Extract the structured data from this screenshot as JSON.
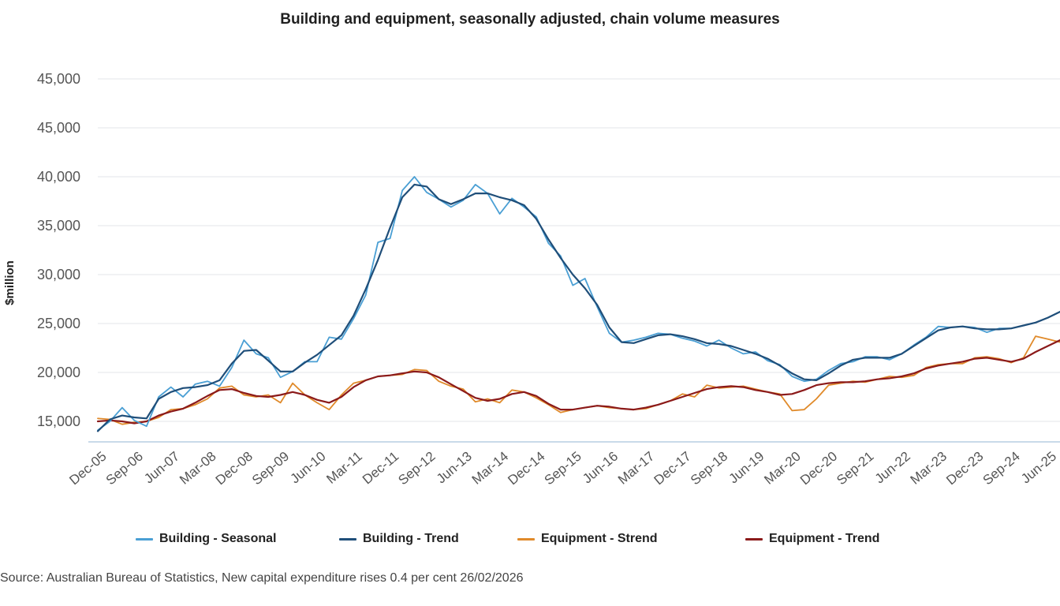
{
  "chart_data": {
    "type": "line",
    "title": "Building and equipment, seasonally adjusted, chain volume measures",
    "xlabel": "",
    "ylabel": "$million",
    "y_tick_labels": [
      "45,000",
      "45,000",
      "40,000",
      "35,000",
      "30,000",
      "25,000",
      "20,000",
      "15,000"
    ],
    "ylim": [
      12500,
      46500
    ],
    "x_tick_labels": [
      "Dec-05",
      "Sep-06",
      "Jun-07",
      "Mar-08",
      "Dec-08",
      "Sep-09",
      "Jun-10",
      "Mar-11",
      "Dec-11",
      "Sep-12",
      "Jun-13",
      "Mar-14",
      "Dec-14",
      "Sep-15",
      "Jun-16",
      "Mar-17",
      "Dec-17",
      "Sep-18",
      "Jun-19",
      "Mar-20",
      "Dec-20",
      "Sep-21",
      "Jun-22",
      "Mar-23",
      "Dec-23",
      "Sep-24",
      "Jun-25"
    ],
    "x_tick_step_quarters": 3,
    "grid": true,
    "legend_position": "bottom",
    "series": [
      {
        "name": "Building - Seasonal",
        "color": "#4a9fd4",
        "values": [
          14100,
          15000,
          16400,
          15100,
          14500,
          17500,
          18500,
          17500,
          18800,
          19100,
          18600,
          20500,
          23300,
          21900,
          21500,
          19500,
          20100,
          21100,
          21100,
          23600,
          23400,
          25500,
          27900,
          33300,
          33700,
          38600,
          40000,
          38400,
          37700,
          36900,
          37600,
          39200,
          38300,
          36200,
          37800,
          36900,
          35900,
          33200,
          31900,
          28900,
          29600,
          26700,
          24000,
          23100,
          23300,
          23600,
          24000,
          23900,
          23500,
          23200,
          22700,
          23300,
          22500,
          21900,
          22100,
          21200,
          20800,
          19600,
          19100,
          19300,
          20200,
          20900,
          21100,
          21600,
          21600,
          21300,
          21900,
          22800,
          23600,
          24700,
          24600,
          24700,
          24600,
          24100,
          24500,
          24500,
          24800,
          25100,
          25600,
          26200
        ]
      },
      {
        "name": "Building - Trend",
        "color": "#1f4e79",
        "values": [
          14000,
          15200,
          15600,
          15400,
          15300,
          17300,
          18000,
          18400,
          18500,
          18700,
          19200,
          20900,
          22200,
          22300,
          21200,
          20100,
          20100,
          21000,
          21800,
          22800,
          23800,
          25800,
          28500,
          31500,
          34800,
          37900,
          39200,
          39000,
          37700,
          37200,
          37700,
          38300,
          38300,
          37900,
          37600,
          37100,
          35700,
          33600,
          31700,
          30000,
          28600,
          26900,
          24600,
          23100,
          23000,
          23400,
          23800,
          23900,
          23700,
          23400,
          23000,
          22900,
          22700,
          22300,
          21900,
          21400,
          20700,
          19900,
          19300,
          19200,
          19900,
          20700,
          21300,
          21500,
          21500,
          21500,
          21900,
          22700,
          23500,
          24300,
          24600,
          24700,
          24500,
          24400,
          24400,
          24500,
          24800,
          25100,
          25600,
          26200
        ]
      },
      {
        "name": "Equipment - Strend",
        "color": "#e08a2a",
        "values": [
          15300,
          15200,
          14700,
          14900,
          15000,
          15400,
          16200,
          16300,
          16700,
          17300,
          18400,
          18600,
          17700,
          17500,
          17700,
          16900,
          18900,
          17700,
          16900,
          16200,
          17700,
          18900,
          19200,
          19600,
          19700,
          19800,
          20300,
          20200,
          19100,
          18600,
          18300,
          17000,
          17300,
          16900,
          18200,
          18000,
          17400,
          16700,
          15900,
          16200,
          16400,
          16600,
          16400,
          16300,
          16200,
          16300,
          16700,
          17100,
          17800,
          17500,
          18700,
          18400,
          18500,
          18600,
          18300,
          18000,
          17800,
          16100,
          16200,
          17300,
          18700,
          18900,
          19100,
          19000,
          19300,
          19600,
          19500,
          19700,
          20500,
          20800,
          20900,
          20900,
          21500,
          21600,
          21400,
          21000,
          21500,
          23700,
          23400,
          23100
        ]
      },
      {
        "name": "Equipment - Trend",
        "color": "#8b1a1a",
        "values": [
          15000,
          15100,
          15000,
          14800,
          15000,
          15600,
          16000,
          16300,
          16900,
          17600,
          18200,
          18300,
          17900,
          17600,
          17500,
          17700,
          18000,
          17700,
          17200,
          16900,
          17500,
          18500,
          19200,
          19600,
          19700,
          19900,
          20100,
          20000,
          19500,
          18800,
          18100,
          17400,
          17100,
          17300,
          17800,
          18000,
          17600,
          16800,
          16200,
          16200,
          16400,
          16600,
          16500,
          16300,
          16200,
          16400,
          16700,
          17100,
          17500,
          17900,
          18300,
          18500,
          18600,
          18500,
          18200,
          18000,
          17700,
          17800,
          18200,
          18700,
          18900,
          19000,
          19000,
          19100,
          19300,
          19400,
          19600,
          19900,
          20400,
          20700,
          20900,
          21100,
          21400,
          21500,
          21300,
          21100,
          21400,
          22100,
          22700,
          23300
        ]
      }
    ]
  },
  "source": "Source: Australian Bureau of Statistics, New capital expenditure rises 0.4 per cent 26/02/2026"
}
